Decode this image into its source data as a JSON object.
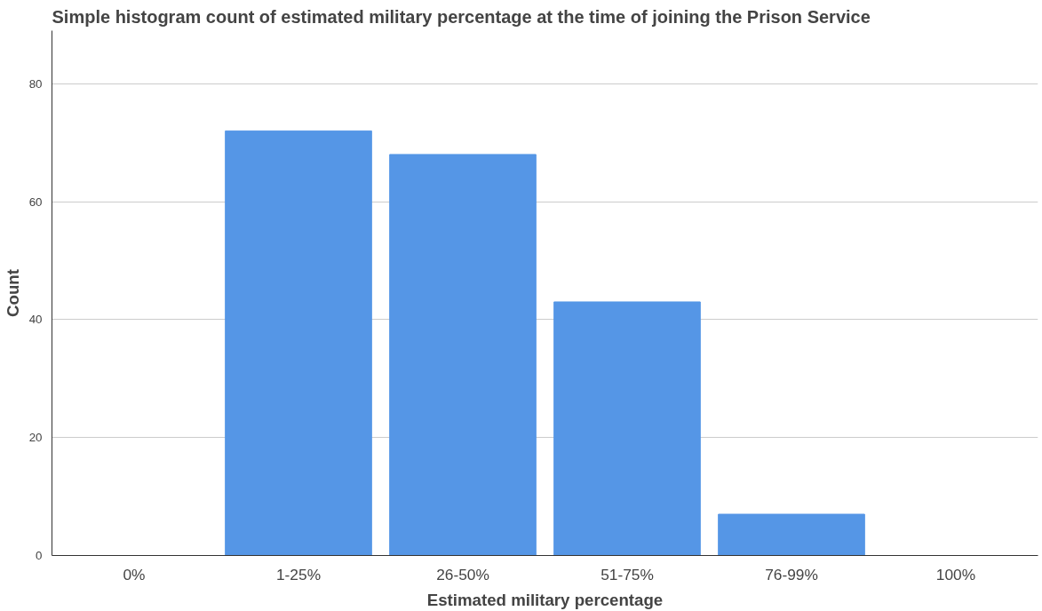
{
  "chart_data": {
    "type": "bar",
    "title": "Simple histogram count of estimated military percentage at the time of joining the Prison Service",
    "xlabel": "Estimated military percentage",
    "ylabel": "Count",
    "categories": [
      "0%",
      "1-25%",
      "26-50%",
      "51-75%",
      "76-99%",
      "100%"
    ],
    "values": [
      0,
      72,
      68,
      43,
      7,
      0
    ],
    "color": "#5596e6",
    "ylim": [
      0,
      89
    ],
    "yticks": [
      0,
      20,
      40,
      60,
      80
    ],
    "grid": "y"
  }
}
